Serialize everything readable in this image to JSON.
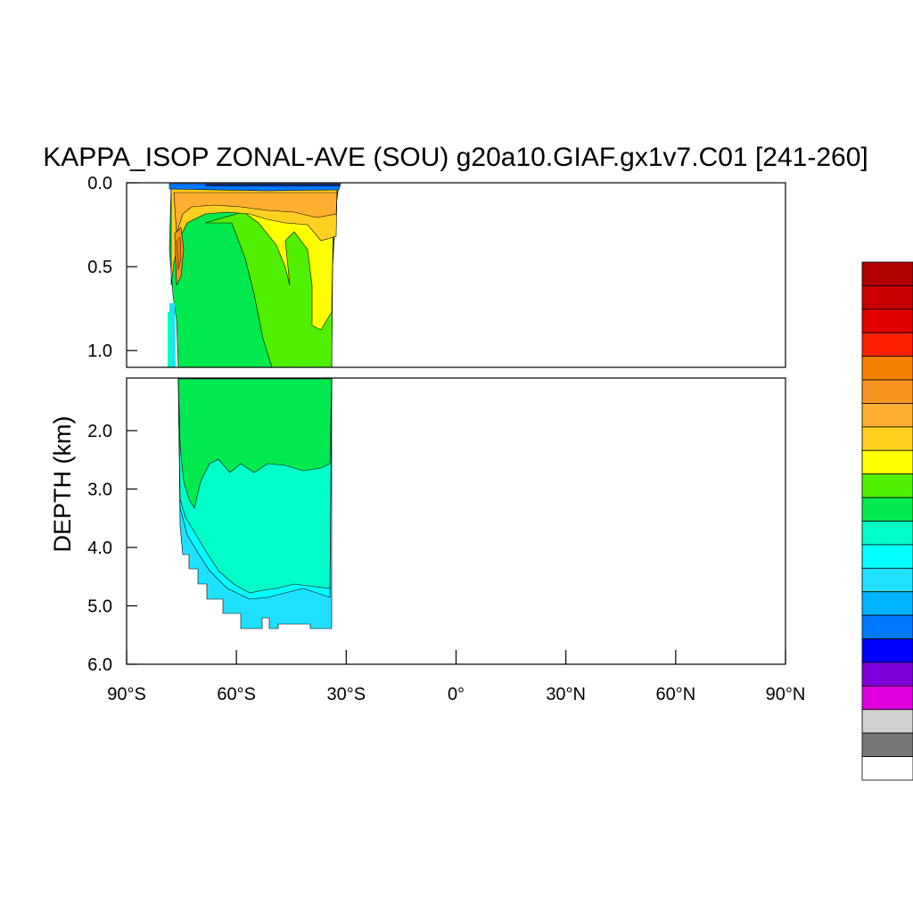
{
  "chart_data": {
    "type": "heatmap",
    "title": "KAPPA_ISOP ZONAL-AVE (SOU) g20a10.GIAF.gx1v7.C01 [241-260]",
    "xlabel": "",
    "ylabel": "DEPTH (km)",
    "xlim": [
      -90,
      90
    ],
    "ylim_top_panel": [
      0.0,
      1.1
    ],
    "ylim_bottom_panel": [
      1.1,
      6.0
    ],
    "x_ticks": [
      {
        "value": -90,
        "label": "90°S"
      },
      {
        "value": -60,
        "label": "60°S"
      },
      {
        "value": -30,
        "label": "30°S"
      },
      {
        "value": 0,
        "label": "0°"
      },
      {
        "value": 30,
        "label": "30°N"
      },
      {
        "value": 60,
        "label": "60°N"
      },
      {
        "value": 90,
        "label": "90°N"
      }
    ],
    "y_ticks_top": [
      {
        "value": 0.0,
        "label": "0.0"
      },
      {
        "value": 0.5,
        "label": "0.5"
      },
      {
        "value": 1.0,
        "label": "1.0"
      }
    ],
    "y_ticks_bottom": [
      {
        "value": 2.0,
        "label": "2.0"
      },
      {
        "value": 3.0,
        "label": "3.0"
      },
      {
        "value": 4.0,
        "label": "4.0"
      },
      {
        "value": 5.0,
        "label": "5.0"
      },
      {
        "value": 6.0,
        "label": "6.0"
      }
    ],
    "colorbar_colors": [
      "#b00000",
      "#c80000",
      "#e00000",
      "#ff2000",
      "#f58000",
      "#fa9420",
      "#ffaf30",
      "#ffd020",
      "#ffff00",
      "#50f000",
      "#00ea50",
      "#00ffc8",
      "#00ffff",
      "#20e0ff",
      "#00b4ff",
      "#0078ff",
      "#0000ff",
      "#8000dc",
      "#e000e0",
      "#d0d0d0",
      "#787878",
      "#ffffff"
    ],
    "data_extent": {
      "lat_south": -78,
      "lat_north": -32,
      "max_depth_km": 5.4
    }
  }
}
